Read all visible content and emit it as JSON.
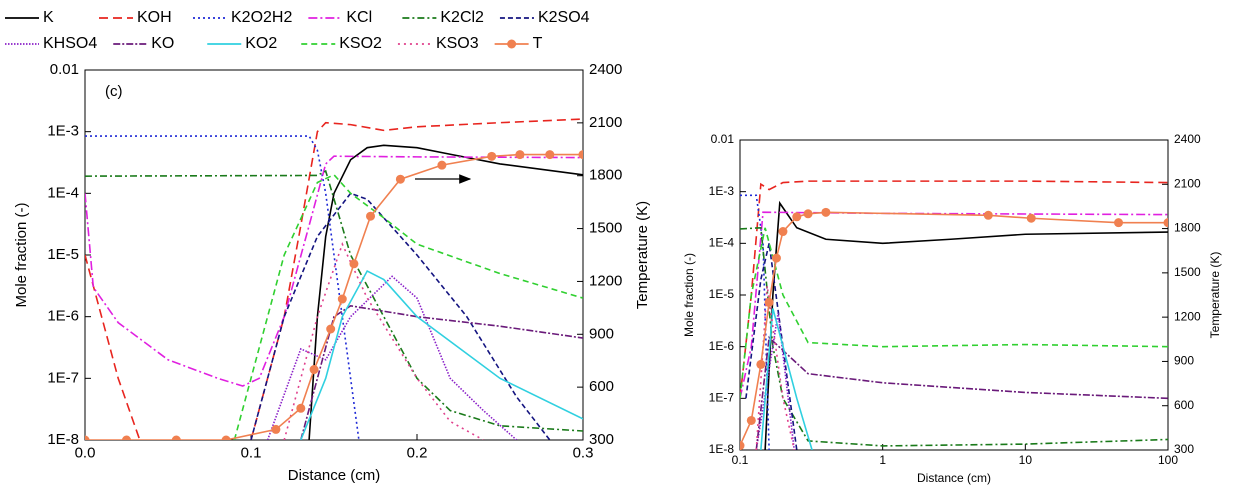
{
  "chart_data": [
    {
      "type": "line",
      "xlabel": "Distance (cm)",
      "ylabel": "Mole fraction (-)",
      "y2label": "Temperature (K)",
      "annotation": "(c)",
      "xlim": [
        0,
        0.3
      ],
      "xticks": [
        {
          "value": 0,
          "label": "0.0"
        },
        0.1,
        0.2,
        0.3
      ],
      "yscale": "log",
      "ylim": [
        1e-08,
        0.01
      ],
      "yticks": [
        {
          "value": 1e-08,
          "label": "1E-8"
        },
        {
          "value": 1e-07,
          "label": "1E-7"
        },
        {
          "value": 1e-06,
          "label": "1E-6"
        },
        {
          "value": 1e-05,
          "label": "1E-5"
        },
        {
          "value": 0.0001,
          "label": "1E-4"
        },
        {
          "value": 0.001,
          "label": "1E-3"
        },
        0.01
      ],
      "y2lim": [
        300,
        2400
      ],
      "y2ticks": [
        300,
        600,
        900,
        1200,
        1500,
        1800,
        2100,
        2400
      ],
      "series": [
        {
          "name": "K",
          "color": "#000000",
          "dash": "none",
          "x": [
            0.135,
            0.14,
            0.145,
            0.15,
            0.16,
            0.17,
            0.18,
            0.2,
            0.22,
            0.25,
            0.3
          ],
          "values": [
            1e-08,
            1e-06,
            2e-05,
            0.0001,
            0.00035,
            0.00055,
            0.0006,
            0.00055,
            0.00043,
            0.0003,
            0.0002
          ]
        },
        {
          "name": "KOH",
          "color": "#e8251f",
          "dash": "9,5",
          "x": [
            0,
            0.01,
            0.02,
            0.033,
            0.06,
            0.1,
            0.12,
            0.13,
            0.14,
            0.145,
            0.16,
            0.18,
            0.2,
            0.25,
            0.3
          ],
          "values": [
            1e-05,
            1e-06,
            1e-07,
            1e-08,
            null,
            1e-08,
            1e-06,
            3e-05,
            0.001,
            0.0014,
            0.0013,
            0.00105,
            0.0012,
            0.0014,
            0.0016
          ]
        },
        {
          "name": "K2O2H2",
          "color": "#1f2ad6",
          "dash": "2,3",
          "x": [
            0,
            0.135,
            0.14,
            0.145,
            0.15,
            0.155,
            0.16,
            0.165
          ],
          "values": [
            0.00085,
            0.00085,
            0.0005,
            0.0001,
            1e-05,
            1e-06,
            1e-07,
            1e-08
          ]
        },
        {
          "name": "KCl",
          "color": "#e020e0",
          "dash": "9,3,2,3",
          "x": [
            0,
            0.005,
            0.02,
            0.05,
            0.08,
            0.095,
            0.105,
            0.12,
            0.135,
            0.145,
            0.15,
            0.2,
            0.3
          ],
          "values": [
            0.0001,
            3e-06,
            8e-07,
            2e-07,
            1e-07,
            7.5e-08,
            1e-07,
            1e-06,
            3e-05,
            0.0003,
            0.0004,
            0.00039,
            0.00038
          ]
        },
        {
          "name": "K2Cl2",
          "color": "#1a7a1a",
          "dash": "7,3,2,3",
          "x": [
            0,
            0.14,
            0.145,
            0.16,
            0.18,
            0.2,
            0.22,
            0.25,
            0.3
          ],
          "values": [
            0.00019,
            0.000195,
            0.00023,
            1e-05,
            1e-06,
            1e-07,
            3e-08,
            1.7e-08,
            1.4e-08
          ]
        },
        {
          "name": "K2SO4",
          "color": "#141480",
          "dash": "5,3",
          "x": [
            0.1,
            0.12,
            0.14,
            0.16,
            0.17,
            0.2,
            0.23,
            0.26,
            0.28
          ],
          "values": [
            1e-08,
            1e-06,
            2e-05,
            0.0001,
            8e-05,
            1e-05,
            1e-06,
            5e-08,
            1e-08
          ]
        },
        {
          "name": "KHSO4",
          "color": "#8a20c8",
          "dash": "1.5,1.5",
          "x": [
            0.11,
            0.13,
            0.145,
            0.16,
            0.185,
            0.2,
            0.22,
            0.24,
            0.26
          ],
          "values": [
            1e-08,
            3e-07,
            2e-07,
            1e-06,
            4.5e-06,
            2e-06,
            1e-07,
            3e-08,
            1e-08
          ]
        },
        {
          "name": "KO",
          "color": "#6a1a7a",
          "dash": "7,2,2,2",
          "x": [
            0.13,
            0.14,
            0.15,
            0.16,
            0.2,
            0.25,
            0.3
          ],
          "values": [
            1e-08,
            1e-07,
            1e-06,
            1.5e-06,
            1e-06,
            7e-07,
            4.5e-07
          ]
        },
        {
          "name": "KO2",
          "color": "#30d0e0",
          "dash": "none",
          "x": [
            0.13,
            0.145,
            0.155,
            0.17,
            0.18,
            0.2,
            0.25,
            0.3
          ],
          "values": [
            1e-08,
            1e-07,
            1e-06,
            5.5e-06,
            4e-06,
            1e-06,
            1e-07,
            2.2e-08
          ]
        },
        {
          "name": "KSO2",
          "color": "#30d030",
          "dash": "6,4",
          "x": [
            0.09,
            0.1,
            0.12,
            0.14,
            0.15,
            0.16,
            0.18,
            0.2,
            0.25,
            0.3
          ],
          "values": [
            1e-08,
            1e-07,
            1e-05,
            0.00015,
            0.0002,
            0.0001,
            4e-05,
            1.5e-05,
            5e-06,
            2e-06
          ]
        },
        {
          "name": "KSO3",
          "color": "#e0408c",
          "dash": "2,4",
          "x": [
            0.12,
            0.14,
            0.155,
            0.17,
            0.2,
            0.22,
            0.24
          ],
          "values": [
            1e-08,
            1e-06,
            1.5e-05,
            2e-06,
            1e-07,
            2e-08,
            1e-08
          ]
        },
        {
          "name": "T",
          "color": "#f08050",
          "dash": "none",
          "marker": "circle",
          "axis": "y2",
          "x": [
            0,
            0.025,
            0.055,
            0.085,
            0.115,
            0.13,
            0.138,
            0.148,
            0.155,
            0.162,
            0.172,
            0.19,
            0.215,
            0.245,
            0.262,
            0.28,
            0.3
          ],
          "values": [
            300,
            300,
            300,
            300,
            360,
            480,
            700,
            930,
            1100,
            1300,
            1570,
            1780,
            1860,
            1910,
            1920,
            1920,
            1920
          ]
        }
      ]
    },
    {
      "type": "line",
      "xlabel": "Distance (cm)",
      "ylabel": "Mole fraction (-)",
      "y2label": "Temperature (K)",
      "xscale": "log",
      "xlim": [
        0.1,
        100
      ],
      "xticks": [
        0.1,
        1,
        10,
        100
      ],
      "yscale": "log",
      "ylim": [
        1e-08,
        0.01
      ],
      "yticks": [
        {
          "value": 1e-08,
          "label": "1E-8"
        },
        {
          "value": 1e-07,
          "label": "1E-7"
        },
        {
          "value": 1e-06,
          "label": "1E-6"
        },
        {
          "value": 1e-05,
          "label": "1E-5"
        },
        {
          "value": 0.0001,
          "label": "1E-4"
        },
        {
          "value": 0.001,
          "label": "1E-3"
        },
        0.01
      ],
      "y2lim": [
        300,
        2400
      ],
      "y2ticks": [
        300,
        600,
        900,
        1200,
        1500,
        1800,
        2100,
        2400
      ],
      "series": [
        {
          "color": "#000000",
          "dash": "none",
          "x": [
            0.15,
            0.17,
            0.19,
            0.25,
            0.4,
            1,
            3,
            10,
            100
          ],
          "values": [
            1e-08,
            1e-05,
            0.0006,
            0.0002,
            0.00012,
            0.0001,
            0.00012,
            0.00015,
            0.000165
          ]
        },
        {
          "color": "#e8251f",
          "dash": "9,5",
          "x": [
            0.1,
            0.12,
            0.14,
            0.16,
            0.2,
            0.3,
            10,
            100
          ],
          "values": [
            1e-07,
            1e-05,
            0.0014,
            0.0011,
            0.0015,
            0.0016,
            0.0016,
            0.0015
          ]
        },
        {
          "color": "#1f2ad6",
          "dash": "2,3",
          "x": [
            0.1,
            0.13,
            0.145,
            0.16
          ],
          "values": [
            0.00085,
            0.00085,
            0.0001,
            1e-08
          ]
        },
        {
          "color": "#e020e0",
          "dash": "9,3,2,3",
          "x": [
            0.1,
            0.12,
            0.145,
            1,
            100
          ],
          "values": [
            1e-07,
            1e-06,
            0.0004,
            0.00038,
            0.00036
          ]
        },
        {
          "color": "#1a7a1a",
          "dash": "7,3,2,3",
          "x": [
            0.1,
            0.14,
            0.17,
            0.2,
            0.3,
            1,
            10,
            100
          ],
          "values": [
            0.00019,
            0.0002,
            1e-06,
            1e-07,
            1.5e-08,
            1.2e-08,
            1.3e-08,
            1.6e-08
          ]
        },
        {
          "color": "#141480",
          "dash": "5,3",
          "x": [
            0.11,
            0.14,
            0.16,
            0.2,
            0.25
          ],
          "values": [
            1e-07,
            2e-05,
            0.0001,
            1e-06,
            1e-08
          ]
        },
        {
          "color": "#8a20c8",
          "dash": "1.5,1.5",
          "x": [
            0.13,
            0.185,
            0.24
          ],
          "values": [
            1e-08,
            4.5e-06,
            1e-08
          ]
        },
        {
          "color": "#6a1a7a",
          "dash": "7,2,2,2",
          "x": [
            0.13,
            0.16,
            0.3,
            1,
            10,
            100
          ],
          "values": [
            1e-08,
            1.5e-06,
            3e-07,
            2e-07,
            1.3e-07,
            1e-07
          ]
        },
        {
          "color": "#30d0e0",
          "dash": "none",
          "x": [
            0.14,
            0.17,
            0.25,
            0.32
          ],
          "values": [
            1e-08,
            5.5e-06,
            1e-07,
            1e-08
          ]
        },
        {
          "color": "#30d030",
          "dash": "6,4",
          "x": [
            0.1,
            0.12,
            0.15,
            0.2,
            0.3,
            1,
            10,
            100
          ],
          "values": [
            1e-07,
            1e-05,
            0.0002,
            1e-05,
            1.2e-06,
            1e-06,
            1.1e-06,
            1e-06
          ]
        },
        {
          "color": "#e0408c",
          "dash": "2,4",
          "x": [
            0.13,
            0.155,
            0.2,
            0.24
          ],
          "values": [
            1e-08,
            1.5e-05,
            1e-07,
            1e-08
          ]
        },
        {
          "color": "#f08050",
          "dash": "none",
          "marker": "circle",
          "axis": "y2",
          "x": [
            0.1,
            0.12,
            0.14,
            0.16,
            0.18,
            0.2,
            0.25,
            0.3,
            0.4,
            5.5,
            11,
            45,
            100
          ],
          "values": [
            330,
            500,
            880,
            1300,
            1600,
            1780,
            1880,
            1900,
            1910,
            1890,
            1870,
            1840,
            1840
          ]
        }
      ]
    }
  ]
}
